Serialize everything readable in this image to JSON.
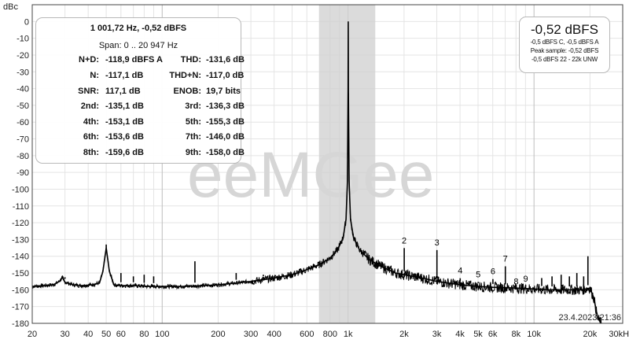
{
  "chart_data": {
    "type": "line",
    "ylabel": "dBc",
    "xunit": "Hz",
    "xscale": "log",
    "xlim": [
      20,
      30000
    ],
    "ylim": [
      -180,
      10
    ],
    "y_ticks": [
      0,
      -10,
      -20,
      -30,
      -40,
      -50,
      -60,
      -70,
      -80,
      -90,
      -100,
      -110,
      -120,
      -130,
      -140,
      -150,
      -160,
      -170,
      -180
    ],
    "x_ticks": [
      {
        "v": 20,
        "label": "20"
      },
      {
        "v": 30,
        "label": "30"
      },
      {
        "v": 40,
        "label": "40"
      },
      {
        "v": 50,
        "label": "50"
      },
      {
        "v": 60,
        "label": "60"
      },
      {
        "v": 80,
        "label": "80"
      },
      {
        "v": 100,
        "label": "100"
      },
      {
        "v": 200,
        "label": "200"
      },
      {
        "v": 300,
        "label": "300"
      },
      {
        "v": 400,
        "label": "400"
      },
      {
        "v": 600,
        "label": "600"
      },
      {
        "v": 800,
        "label": "800"
      },
      {
        "v": 1000,
        "label": "1k"
      },
      {
        "v": 2000,
        "label": "2k"
      },
      {
        "v": 3000,
        "label": "3k"
      },
      {
        "v": 4000,
        "label": "4k"
      },
      {
        "v": 5000,
        "label": "5k"
      },
      {
        "v": 6000,
        "label": "6k"
      },
      {
        "v": 8000,
        "label": "8k"
      },
      {
        "v": 10000,
        "label": "10k"
      },
      {
        "v": 20000,
        "label": "20k"
      },
      {
        "v": 30000,
        "label": "30kHz"
      }
    ],
    "highlight_band": [
      700,
      1400
    ],
    "grid": true,
    "series": [
      {
        "points": [
          [
            20,
            -158
          ],
          [
            23,
            -157.5
          ],
          [
            26,
            -157
          ],
          [
            28,
            -155
          ],
          [
            29,
            -152.5
          ],
          [
            30,
            -155.5
          ],
          [
            33,
            -157
          ],
          [
            37,
            -157.5
          ],
          [
            42,
            -157
          ],
          [
            46,
            -156
          ],
          [
            48,
            -149
          ],
          [
            50,
            -135
          ],
          [
            52,
            -149
          ],
          [
            55,
            -157
          ],
          [
            60,
            -157.5
          ],
          [
            70,
            -157.5
          ],
          [
            85,
            -158
          ],
          [
            100,
            -158
          ],
          [
            130,
            -158
          ],
          [
            170,
            -157.5
          ],
          [
            200,
            -157
          ],
          [
            250,
            -156
          ],
          [
            300,
            -155
          ],
          [
            400,
            -153
          ],
          [
            500,
            -151
          ],
          [
            600,
            -148
          ],
          [
            700,
            -145
          ],
          [
            800,
            -141
          ],
          [
            880,
            -136
          ],
          [
            940,
            -129
          ],
          [
            975,
            -118
          ],
          [
            992,
            -95
          ],
          [
            1000,
            -40
          ],
          [
            1001.7,
            0
          ],
          [
            1004,
            -40
          ],
          [
            1012,
            -95
          ],
          [
            1030,
            -118
          ],
          [
            1070,
            -129
          ],
          [
            1150,
            -136
          ],
          [
            1300,
            -142
          ],
          [
            1500,
            -146
          ],
          [
            1800,
            -150
          ],
          [
            2000,
            -151
          ],
          [
            2500,
            -153
          ],
          [
            3000,
            -155
          ],
          [
            4000,
            -157
          ],
          [
            5000,
            -158
          ],
          [
            6000,
            -158.5
          ],
          [
            8000,
            -159
          ],
          [
            10000,
            -159.5
          ],
          [
            12000,
            -160
          ],
          [
            15000,
            -160
          ],
          [
            18000,
            -160
          ],
          [
            20000,
            -159
          ],
          [
            21000,
            -165
          ],
          [
            22000,
            -177
          ],
          [
            23000,
            -180
          ]
        ],
        "spikes": [
          [
            30,
            -152.5
          ],
          [
            50,
            -135
          ],
          [
            60,
            -150
          ],
          [
            70,
            -152
          ],
          [
            80,
            -151
          ],
          [
            90,
            -152
          ],
          [
            150,
            -143
          ],
          [
            250,
            -150
          ],
          [
            350,
            -151
          ],
          [
            2004,
            -135.1
          ],
          [
            3005,
            -136.3
          ],
          [
            4007,
            -153.1
          ],
          [
            5009,
            -155.3
          ],
          [
            6010,
            -153.6
          ],
          [
            7012,
            -146
          ],
          [
            8014,
            -159.6
          ],
          [
            9015,
            -158
          ],
          [
            11000,
            -153
          ],
          [
            12500,
            -152
          ],
          [
            14000,
            -151
          ],
          [
            15500,
            -152
          ],
          [
            17000,
            -150
          ],
          [
            18500,
            -152
          ],
          [
            19500,
            -140
          ]
        ]
      }
    ],
    "harmonic_labels": [
      {
        "label": "2",
        "x": 2004,
        "y": -135.1
      },
      {
        "label": "3",
        "x": 3005,
        "y": -136.3
      },
      {
        "label": "4",
        "x": 4007,
        "y": -153.1
      },
      {
        "label": "5",
        "x": 5009,
        "y": -155.3
      },
      {
        "label": "6",
        "x": 6010,
        "y": -153.6
      },
      {
        "label": "7",
        "x": 7012,
        "y": -146.0
      },
      {
        "label": "8",
        "x": 8014,
        "y": -159.6
      },
      {
        "label": "9",
        "x": 9015,
        "y": -158.0
      }
    ],
    "watermark": "eeMGee",
    "timestamp": "23.4.2023 21:36"
  },
  "stats_box": {
    "header1": "1 001,72 Hz, -0,52 dBFS",
    "header2": "Span: 0 .. 20 947 Hz",
    "rows": [
      {
        "l1": "N+D:",
        "v1": "-118,9 dBFS A",
        "l2": "THD:",
        "v2": "-131,6 dB"
      },
      {
        "l1": "N:",
        "v1": "-117,1 dB",
        "l2": "THD+N:",
        "v2": "-117,0 dB"
      },
      {
        "l1": "SNR:",
        "v1": "117,1 dB",
        "l2": "ENOB:",
        "v2": "19,7 bits"
      },
      {
        "l1": "2nd:",
        "v1": "-135,1 dB",
        "l2": "3rd:",
        "v2": "-136,3 dB"
      },
      {
        "l1": "4th:",
        "v1": "-153,1 dB",
        "l2": "5th:",
        "v2": "-155,3 dB"
      },
      {
        "l1": "6th:",
        "v1": "-153,6 dB",
        "l2": "7th:",
        "v2": "-146,0 dB"
      },
      {
        "l1": "8th:",
        "v1": "-159,6 dB",
        "l2": "9th:",
        "v2": "-158,0 dB"
      }
    ]
  },
  "level_box": {
    "main": "-0,52 dBFS",
    "line1": "-0,5 dBFS C, -0,5 dBFS A",
    "line2": "Peak sample: -0,52 dBFS",
    "line3": "-0,5 dBFS 22 - 22k UNW"
  }
}
